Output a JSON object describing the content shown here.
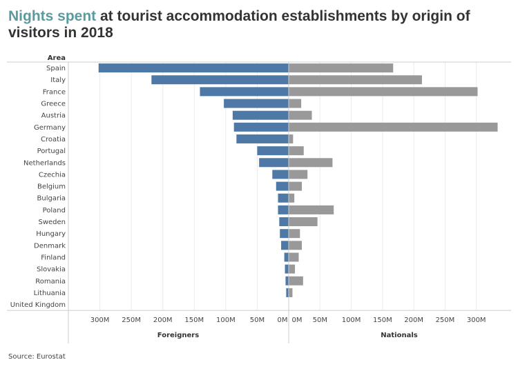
{
  "title": {
    "highlight": "Nights spent",
    "rest": " at tourist accommodation establishments by origin of visitors in 2018"
  },
  "source": "Source: Eurostat",
  "colors": {
    "foreigners": "#4e79a7",
    "nationals": "#999999",
    "title_highlight": "#5b9b9e",
    "grid": "#ebebeb",
    "axis": "#cccccc"
  },
  "chart_data": {
    "type": "bar",
    "orientation": "horizontal",
    "row_header": "Area",
    "categories": [
      "Spain",
      "Italy",
      "France",
      "Greece",
      "Austria",
      "Germany",
      "Croatia",
      "Portugal",
      "Netherlands",
      "Czechia",
      "Belgium",
      "Bulgaria",
      "Poland",
      "Sweden",
      "Hungary",
      "Denmark",
      "Finland",
      "Slovakia",
      "Romania",
      "Lithuania",
      "United Kingdom"
    ],
    "series": [
      {
        "name": "Foreigners",
        "values": [
          302,
          218,
          141,
          103,
          89,
          87,
          83,
          50,
          47,
          26,
          20,
          17,
          17,
          15,
          14,
          12,
          7,
          6,
          5,
          4,
          0
        ]
      },
      {
        "name": "Nationals",
        "values": [
          167,
          213,
          302,
          20,
          37,
          334,
          7,
          24,
          70,
          30,
          21,
          9,
          72,
          46,
          18,
          21,
          16,
          10,
          23,
          6,
          0
        ]
      }
    ],
    "unit": "M",
    "xlim": [
      0,
      350
    ],
    "ticks": [
      0,
      50,
      100,
      150,
      200,
      250,
      300
    ],
    "tick_labels": [
      "0M",
      "50M",
      "100M",
      "150M",
      "200M",
      "250M",
      "300M"
    ],
    "xlabels": [
      "Foreigners",
      "Nationals"
    ],
    "grid": true,
    "legend": "none"
  }
}
